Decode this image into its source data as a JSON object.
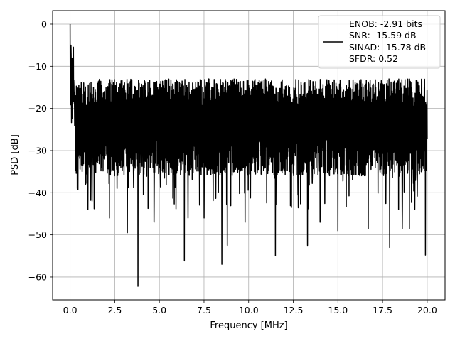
{
  "chart_data": {
    "type": "line",
    "title": "",
    "xlabel": "Frequency [MHz]",
    "ylabel": "PSD [dB]",
    "xlim": [
      -0.98,
      21.0
    ],
    "ylim": [
      -65.4,
      3.2
    ],
    "xticks": [
      0.0,
      2.5,
      5.0,
      7.5,
      10.0,
      12.5,
      15.0,
      17.5,
      20.0
    ],
    "xtick_labels": [
      "0.0",
      "2.5",
      "5.0",
      "7.5",
      "10.0",
      "12.5",
      "15.0",
      "17.5",
      "20.0"
    ],
    "yticks": [
      0,
      -10,
      -20,
      -30,
      -40,
      -50,
      -60
    ],
    "ytick_labels": [
      "0",
      "−10",
      "−20",
      "−30",
      "−40",
      "−50",
      "−60"
    ],
    "grid": true,
    "legend_position": "top-right",
    "legend": [
      "ENOB: -2.91 bits",
      "SNR: -15.59 dB",
      "SINAD: -15.78 dB",
      "SFDR: 0.52"
    ],
    "line_color": "#000000",
    "series": [
      {
        "name": "",
        "x_start": 0.0,
        "x_end": 20.0,
        "n_points": 2048,
        "noise_floor_db": -25.0,
        "peak_db": 0.0,
        "notable_points": [
          [
            0.0,
            0.0
          ],
          [
            0.05,
            -5.0
          ],
          [
            0.15,
            -8.0
          ],
          [
            0.4,
            -39.0
          ],
          [
            1.0,
            -44.0
          ],
          [
            2.2,
            -46.0
          ],
          [
            3.2,
            -49.5
          ],
          [
            3.8,
            -62.2
          ],
          [
            4.7,
            -47.0
          ],
          [
            6.4,
            -56.2
          ],
          [
            6.6,
            -46.0
          ],
          [
            7.5,
            -46.0
          ],
          [
            8.5,
            -57.0
          ],
          [
            8.8,
            -52.5
          ],
          [
            9.8,
            -47.0
          ],
          [
            11.5,
            -55.0
          ],
          [
            13.3,
            -52.5
          ],
          [
            14.0,
            -47.0
          ],
          [
            15.0,
            -49.0
          ],
          [
            16.7,
            -48.5
          ],
          [
            17.9,
            -53.0
          ],
          [
            18.6,
            -48.5
          ],
          [
            19.0,
            -48.5
          ],
          [
            19.9,
            -54.8
          ]
        ]
      }
    ]
  }
}
